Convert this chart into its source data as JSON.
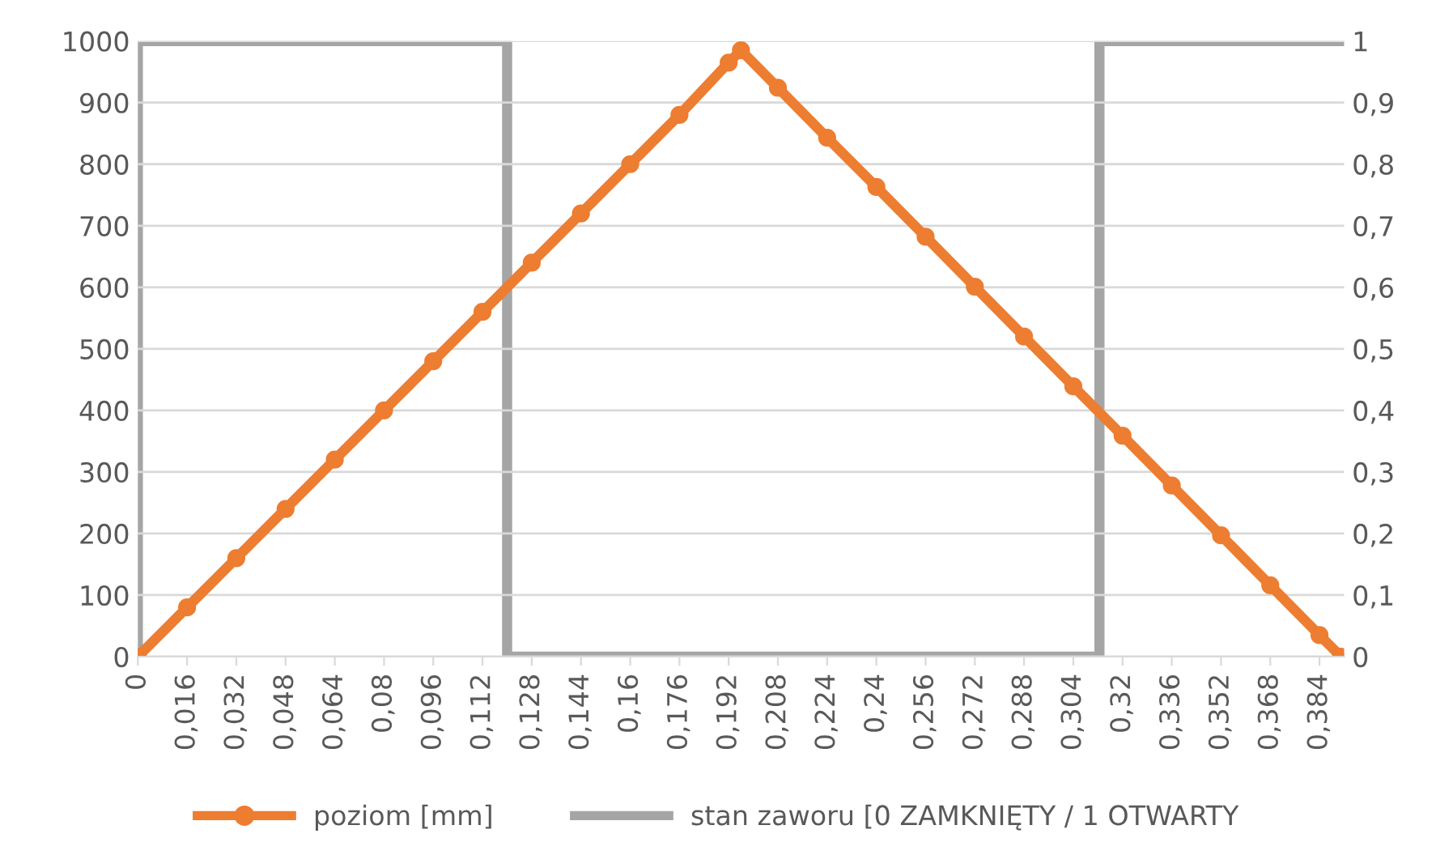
{
  "chart_data": {
    "type": "line",
    "legend": "bottom",
    "grid": "y",
    "xlim": [
      0,
      0.392
    ],
    "xticks": [
      {
        "value": 0,
        "label": "0"
      },
      {
        "value": 0.016,
        "label": "0,016"
      },
      {
        "value": 0.032,
        "label": "0,032"
      },
      {
        "value": 0.048,
        "label": "0,048"
      },
      {
        "value": 0.064,
        "label": "0,064"
      },
      {
        "value": 0.08,
        "label": "0,08"
      },
      {
        "value": 0.096,
        "label": "0,096"
      },
      {
        "value": 0.112,
        "label": "0,112"
      },
      {
        "value": 0.128,
        "label": "0,128"
      },
      {
        "value": 0.144,
        "label": "0,144"
      },
      {
        "value": 0.16,
        "label": "0,16"
      },
      {
        "value": 0.176,
        "label": "0,176"
      },
      {
        "value": 0.192,
        "label": "0,192"
      },
      {
        "value": 0.208,
        "label": "0,208"
      },
      {
        "value": 0.224,
        "label": "0,224"
      },
      {
        "value": 0.24,
        "label": "0,24"
      },
      {
        "value": 0.256,
        "label": "0,256"
      },
      {
        "value": 0.272,
        "label": "0,272"
      },
      {
        "value": 0.288,
        "label": "0,288"
      },
      {
        "value": 0.304,
        "label": "0,304"
      },
      {
        "value": 0.32,
        "label": "0,32"
      },
      {
        "value": 0.336,
        "label": "0,336"
      },
      {
        "value": 0.352,
        "label": "0,352"
      },
      {
        "value": 0.368,
        "label": "0,368"
      },
      {
        "value": 0.384,
        "label": "0,384"
      }
    ],
    "ylim": [
      0,
      1000
    ],
    "yticks": [
      0,
      100,
      200,
      300,
      400,
      500,
      600,
      700,
      800,
      900,
      1000
    ],
    "y2lim": [
      0,
      1
    ],
    "y2ticks": [
      0,
      {
        "value": 0.1,
        "label": "0,1"
      },
      {
        "value": 0.2,
        "label": "0,2"
      },
      {
        "value": 0.3,
        "label": "0,3"
      },
      {
        "value": 0.4,
        "label": "0,4"
      },
      {
        "value": 0.5,
        "label": "0,5"
      },
      {
        "value": 0.6,
        "label": "0,6"
      },
      {
        "value": 0.7,
        "label": "0,7"
      },
      {
        "value": 0.8,
        "label": "0,8"
      },
      {
        "value": 0.9,
        "label": "0,9"
      },
      1
    ],
    "series": [
      {
        "name": "poziom [mm]",
        "color": "#ed7d31",
        "marker": "circle",
        "x": [
          0,
          0.016,
          0.032,
          0.048,
          0.064,
          0.08,
          0.096,
          0.112,
          0.128,
          0.144,
          0.16,
          0.176,
          0.192,
          0.196,
          0.208,
          0.224,
          0.24,
          0.256,
          0.272,
          0.288,
          0.304,
          0.32,
          0.336,
          0.352,
          0.368,
          0.384,
          0.391
        ],
        "values": [
          0,
          80,
          160,
          240,
          320,
          400,
          480,
          560,
          640,
          720,
          800,
          880,
          965,
          985,
          924,
          843,
          763,
          682,
          601,
          520,
          439,
          359,
          278,
          197,
          116,
          35,
          0
        ]
      },
      {
        "name": "stan zaworu [0 ZAMKNIĘTY / 1 OTWARTY",
        "color": "#a5a5a5",
        "axis": "y2",
        "x": [
          0,
          0,
          0.12,
          0.12,
          0.3125,
          0.3125,
          0.391
        ],
        "values": [
          0,
          1,
          1,
          0,
          0,
          1,
          1
        ]
      }
    ]
  }
}
